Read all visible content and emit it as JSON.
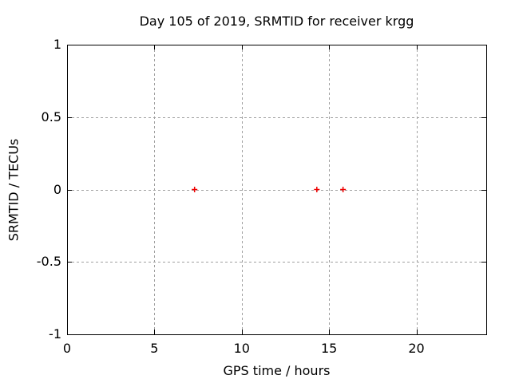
{
  "chart_data": {
    "type": "scatter",
    "title": "Day 105 of 2019, SRMTID for receiver krgg",
    "xlabel": "GPS time / hours",
    "ylabel": "SRMTID / TECUs",
    "xlim": [
      0,
      24
    ],
    "ylim": [
      -1,
      1
    ],
    "xtick_values": [
      0,
      5,
      10,
      15,
      20
    ],
    "xtick_labels": [
      "0",
      "5",
      "10",
      "15",
      "20"
    ],
    "ytick_values": [
      -1,
      -0.5,
      0,
      0.5,
      1
    ],
    "ytick_labels": [
      "-1",
      "-0.5",
      "0",
      "0.5",
      "1"
    ],
    "grid": true,
    "grid_style": "dotted",
    "legend_position": "none",
    "series": [
      {
        "name": "SRMTID",
        "marker": "plus",
        "color": "#ee0000",
        "points": [
          {
            "x": 7.3,
            "y": 0
          },
          {
            "x": 14.3,
            "y": 0
          },
          {
            "x": 15.8,
            "y": 0
          }
        ]
      }
    ],
    "colors": {
      "marker": "#ee0000",
      "grid": "#a0a0a0",
      "axis": "#000000",
      "background": "#ffffff"
    }
  }
}
